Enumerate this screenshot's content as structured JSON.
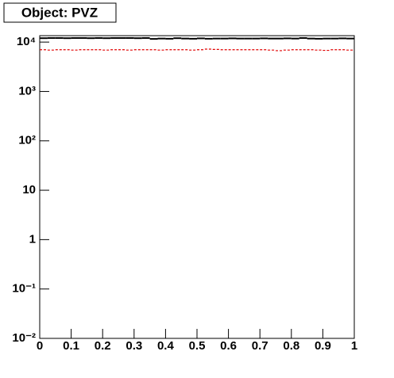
{
  "chart_data": {
    "type": "histogram",
    "title": "Object: PVZ",
    "bins": [
      0,
      0.025,
      0.05,
      0.075,
      0.1,
      0.125,
      0.15,
      0.175,
      0.2,
      0.225,
      0.25,
      0.275,
      0.3,
      0.325,
      0.35,
      0.375,
      0.4,
      0.425,
      0.45,
      0.475,
      0.5,
      0.525,
      0.55,
      0.575,
      0.6,
      0.625,
      0.65,
      0.675,
      0.7,
      0.725,
      0.75,
      0.775,
      0.8,
      0.825,
      0.85,
      0.875,
      0.9,
      0.925,
      0.95,
      0.975,
      1
    ],
    "series": [
      {
        "color": "#000000",
        "values": [
          12000,
          12100,
          12100,
          12000,
          12100,
          12100,
          12000,
          12100,
          12000,
          12100,
          12100,
          12100,
          12000,
          12100,
          11600,
          11800,
          11700,
          12000,
          11800,
          11700,
          11900,
          11700,
          11800,
          11800,
          11900,
          11800,
          11800,
          11800,
          11900,
          11800,
          11800,
          11900,
          11800,
          12100,
          11800,
          11700,
          11800,
          11800,
          11900,
          11800
        ]
      },
      {
        "color": "#e00000",
        "values": [
          7000,
          6900,
          7000,
          7000,
          6900,
          7000,
          7000,
          7000,
          6900,
          7000,
          7000,
          6900,
          7000,
          7000,
          7000,
          6900,
          7000,
          7000,
          7000,
          6900,
          7000,
          7200,
          7100,
          7000,
          7000,
          7000,
          7000,
          7000,
          7000,
          6900,
          6700,
          6900,
          7000,
          7000,
          7000,
          6900,
          6800,
          7000,
          7000,
          6900
        ]
      }
    ],
    "xlim": [
      0,
      1
    ],
    "xticks": [
      0,
      0.1,
      0.2,
      0.3,
      0.4,
      0.5,
      0.6,
      0.7,
      0.8,
      0.9,
      1
    ],
    "ylim": [
      0.01,
      13500
    ],
    "ylog": true,
    "yticks": [
      {
        "value": 0.01,
        "label": "10⁻²"
      },
      {
        "value": 0.1,
        "label": "10⁻¹"
      },
      1,
      10,
      {
        "value": 100,
        "label": "10²"
      },
      {
        "value": 1000,
        "label": "10³"
      },
      {
        "value": 10000,
        "label": "10⁴"
      }
    ]
  }
}
